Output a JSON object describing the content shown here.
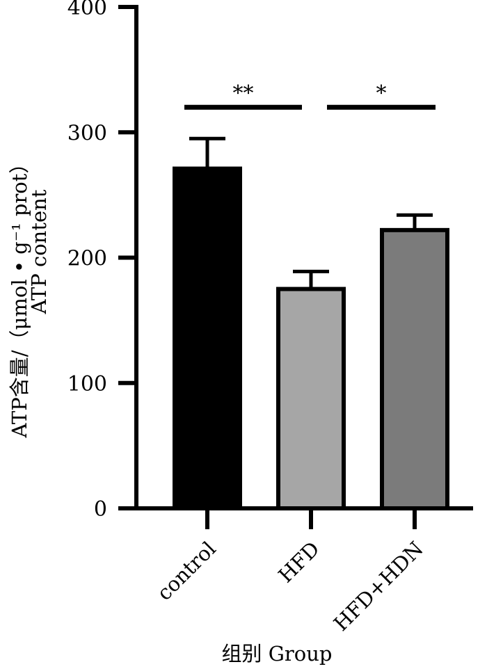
{
  "chart_data": {
    "type": "bar",
    "categories": [
      "control",
      "HFD",
      "HFD+HDN"
    ],
    "values": [
      271,
      175,
      222
    ],
    "errors": [
      24,
      14,
      12
    ],
    "bar_colors": [
      "#000000",
      "#a6a6a6",
      "#7b7b7b"
    ],
    "ylabel_line1": "ATP含量/（μmol • g⁻¹ prot）",
    "ylabel_line2": "ATP content",
    "xlabel": "组别  Group",
    "ylim": [
      0,
      400
    ],
    "yticks": [
      0,
      100,
      200,
      300,
      400
    ],
    "grid": false,
    "significance": [
      {
        "from": 0,
        "to": 1,
        "label": "**",
        "y": 320
      },
      {
        "from": 1,
        "to": 2,
        "label": "*",
        "y": 320
      }
    ]
  }
}
